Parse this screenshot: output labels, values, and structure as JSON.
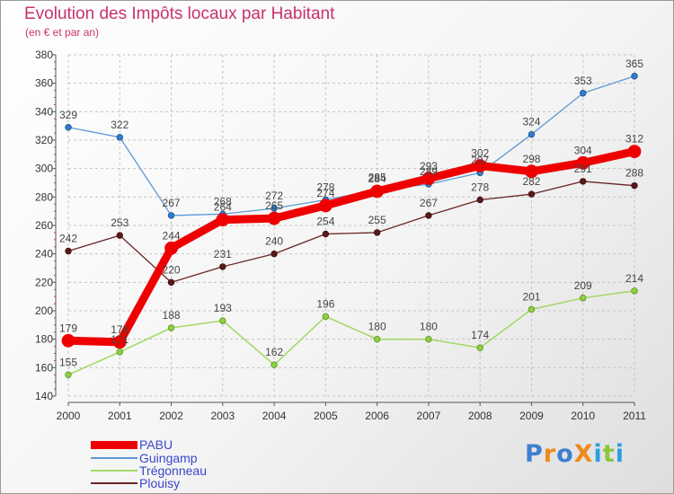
{
  "header": {
    "title": "Evolution des Impôts locaux par Habitant",
    "subtitle": "(en € et par an)"
  },
  "colors": {
    "PABU": "#ee0000",
    "Guingamp": "#5b9ad6",
    "Trégonneau": "#a6d96a",
    "Plouisy": "#6b2525",
    "title": "#c8326e",
    "legend_text": "#3a46c8"
  },
  "logo": {
    "text": "ProXiti"
  },
  "chart_data": {
    "type": "line",
    "title": "Evolution des Impôts locaux par Habitant",
    "subtitle": "(en € et par an)",
    "xlabel": "",
    "ylabel": "",
    "ylim": [
      140,
      380
    ],
    "y_ticks": [
      140,
      160,
      180,
      200,
      220,
      240,
      260,
      280,
      300,
      320,
      340,
      360,
      380
    ],
    "grid": true,
    "legend_position": "bottom-left",
    "x": [
      "2000",
      "2001",
      "2002",
      "2003",
      "2004",
      "2005",
      "2006",
      "2007",
      "2008",
      "2009",
      "2010",
      "2011"
    ],
    "series": [
      {
        "name": "PABU",
        "values": [
          179,
          178,
          244,
          264,
          265,
          274,
          284,
          293,
          302,
          298,
          304,
          312
        ]
      },
      {
        "name": "Guingamp",
        "values": [
          329,
          322,
          267,
          268,
          272,
          278,
          285,
          289,
          297,
          324,
          353,
          365
        ]
      },
      {
        "name": "Trégonneau",
        "values": [
          155,
          171,
          188,
          193,
          162,
          196,
          180,
          180,
          174,
          201,
          209,
          214
        ]
      },
      {
        "name": "Plouisy",
        "values": [
          242,
          253,
          220,
          231,
          240,
          254,
          255,
          267,
          278,
          282,
          291,
          288
        ]
      }
    ]
  }
}
